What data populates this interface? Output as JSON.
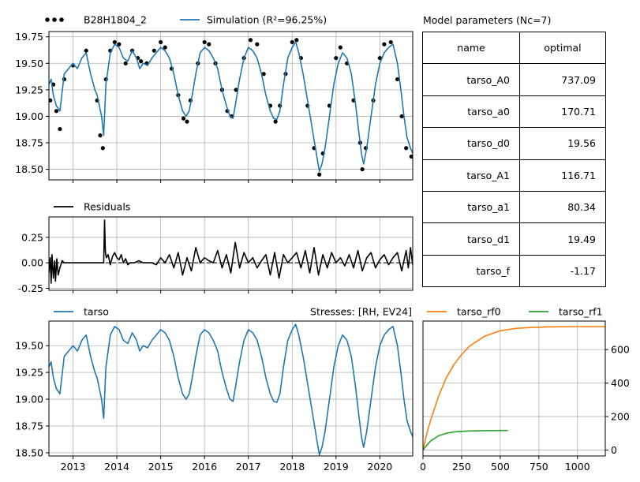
{
  "legends": {
    "observed": "B28H1804_2",
    "simulation": "Simulation (R²=96.25%)",
    "residuals": "Residuals",
    "contribution": "tarso",
    "stresses": "Stresses: [RH, EV24]",
    "rf0": "tarso_rf0",
    "rf1": "tarso_rf1"
  },
  "params_table": {
    "title": "Model parameters (Nc=7)",
    "headers": [
      "name",
      "optimal"
    ],
    "rows": [
      {
        "name": "tarso_A0",
        "optimal": "737.09"
      },
      {
        "name": "tarso_a0",
        "optimal": "170.71"
      },
      {
        "name": "tarso_d0",
        "optimal": "19.56"
      },
      {
        "name": "tarso_A1",
        "optimal": "116.71"
      },
      {
        "name": "tarso_a1",
        "optimal": "80.34"
      },
      {
        "name": "tarso_d1",
        "optimal": "19.49"
      },
      {
        "name": "tarso_f",
        "optimal": "-1.17"
      }
    ]
  },
  "colors": {
    "simulation": "#1f77b4",
    "observed": "#000000",
    "rf0": "#ff7f0e",
    "rf1": "#2ca02c"
  },
  "chart_data": [
    {
      "type": "line",
      "panel": "head",
      "xlim": [
        2012.45,
        2020.75
      ],
      "ylim": [
        18.4,
        19.8
      ],
      "yticks": [
        "18.50",
        "18.75",
        "19.00",
        "19.25",
        "19.50",
        "19.75"
      ],
      "grid": true,
      "legend_position": "top-left-outside",
      "series": [
        {
          "name": "B28H1804_2",
          "style": "markers",
          "x": [
            2012.48,
            2012.55,
            2012.62,
            2012.7,
            2012.8,
            2013.0,
            2013.3,
            2013.55,
            2013.62,
            2013.68,
            2013.75,
            2013.85,
            2013.95,
            2014.05,
            2014.2,
            2014.35,
            2014.48,
            2014.55,
            2014.68,
            2014.85,
            2015.0,
            2015.1,
            2015.25,
            2015.4,
            2015.52,
            2015.6,
            2015.68,
            2015.85,
            2016.0,
            2016.1,
            2016.25,
            2016.4,
            2016.52,
            2016.62,
            2016.72,
            2016.9,
            2017.05,
            2017.2,
            2017.35,
            2017.5,
            2017.62,
            2017.72,
            2017.85,
            2018.0,
            2018.1,
            2018.2,
            2018.35,
            2018.5,
            2018.62,
            2018.7,
            2018.85,
            2019.0,
            2019.1,
            2019.25,
            2019.4,
            2019.55,
            2019.6,
            2019.68,
            2019.85,
            2020.0,
            2020.1,
            2020.25,
            2020.4,
            2020.5,
            2020.6,
            2020.72
          ],
          "y": [
            19.15,
            19.3,
            19.05,
            18.88,
            19.35,
            19.48,
            19.62,
            19.15,
            18.82,
            18.7,
            19.35,
            19.62,
            19.7,
            19.68,
            19.5,
            19.62,
            19.55,
            19.52,
            19.5,
            19.62,
            19.7,
            19.65,
            19.45,
            19.2,
            18.98,
            18.95,
            19.15,
            19.5,
            19.7,
            19.68,
            19.5,
            19.25,
            19.05,
            19.0,
            19.25,
            19.55,
            19.72,
            19.68,
            19.4,
            19.1,
            18.95,
            19.1,
            19.4,
            19.7,
            19.72,
            19.55,
            19.1,
            18.7,
            18.45,
            18.65,
            19.1,
            19.55,
            19.65,
            19.5,
            19.15,
            18.75,
            18.5,
            18.7,
            19.15,
            19.55,
            19.68,
            19.7,
            19.35,
            19.0,
            18.7,
            18.62
          ]
        },
        {
          "name": "Simulation (R²=96.25%)",
          "style": "line",
          "x": [
            2012.45,
            2012.5,
            2012.55,
            2012.62,
            2012.7,
            2012.8,
            2012.9,
            2013.0,
            2013.1,
            2013.2,
            2013.3,
            2013.4,
            2013.5,
            2013.55,
            2013.6,
            2013.65,
            2013.7,
            2013.75,
            2013.85,
            2013.95,
            2014.05,
            2014.15,
            2014.25,
            2014.35,
            2014.45,
            2014.52,
            2014.6,
            2014.7,
            2014.8,
            2014.9,
            2015.0,
            2015.1,
            2015.2,
            2015.3,
            2015.4,
            2015.5,
            2015.58,
            2015.65,
            2015.72,
            2015.8,
            2015.9,
            2016.0,
            2016.1,
            2016.2,
            2016.3,
            2016.4,
            2016.5,
            2016.58,
            2016.65,
            2016.72,
            2016.8,
            2016.9,
            2017.0,
            2017.1,
            2017.2,
            2017.3,
            2017.4,
            2017.5,
            2017.58,
            2017.65,
            2017.72,
            2017.8,
            2017.9,
            2018.0,
            2018.08,
            2018.15,
            2018.25,
            2018.35,
            2018.45,
            2018.55,
            2018.62,
            2018.68,
            2018.75,
            2018.85,
            2018.95,
            2019.05,
            2019.15,
            2019.25,
            2019.35,
            2019.45,
            2019.52,
            2019.58,
            2019.63,
            2019.7,
            2019.8,
            2019.9,
            2020.0,
            2020.1,
            2020.2,
            2020.3,
            2020.4,
            2020.48,
            2020.55,
            2020.62,
            2020.7,
            2020.75
          ],
          "y": [
            19.3,
            19.35,
            19.2,
            19.1,
            19.05,
            19.4,
            19.45,
            19.5,
            19.45,
            19.55,
            19.6,
            19.4,
            19.25,
            19.2,
            19.1,
            19.0,
            18.82,
            19.3,
            19.6,
            19.68,
            19.65,
            19.55,
            19.52,
            19.62,
            19.55,
            19.45,
            19.5,
            19.48,
            19.55,
            19.6,
            19.65,
            19.62,
            19.55,
            19.4,
            19.2,
            19.05,
            19.0,
            19.05,
            19.2,
            19.4,
            19.6,
            19.65,
            19.62,
            19.55,
            19.45,
            19.25,
            19.1,
            19.0,
            18.98,
            19.15,
            19.35,
            19.55,
            19.65,
            19.62,
            19.55,
            19.4,
            19.2,
            19.05,
            18.98,
            18.97,
            19.05,
            19.3,
            19.55,
            19.65,
            19.7,
            19.6,
            19.4,
            19.15,
            18.9,
            18.65,
            18.48,
            18.55,
            18.7,
            19.0,
            19.3,
            19.5,
            19.6,
            19.55,
            19.4,
            19.1,
            18.85,
            18.65,
            18.55,
            18.7,
            19.0,
            19.3,
            19.5,
            19.6,
            19.65,
            19.68,
            19.5,
            19.25,
            19.0,
            18.8,
            18.7,
            18.65
          ]
        }
      ]
    },
    {
      "type": "line",
      "panel": "residuals",
      "xlim": [
        2012.45,
        2020.75
      ],
      "ylim": [
        -0.27,
        0.45
      ],
      "yticks": [
        "-0.25",
        "0.00",
        "0.25"
      ],
      "grid": true,
      "legend_position": "top-left-outside",
      "series": [
        {
          "name": "Residuals",
          "x": [
            2012.45,
            2012.48,
            2012.5,
            2012.52,
            2012.55,
            2012.58,
            2012.6,
            2012.63,
            2012.66,
            2012.7,
            2012.75,
            2012.8,
            2013.7,
            2013.72,
            2013.74,
            2013.76,
            2013.8,
            2013.85,
            2013.9,
            2013.95,
            2014.0,
            2014.05,
            2014.1,
            2014.15,
            2014.2,
            2014.25,
            2014.3,
            2014.4,
            2014.5,
            2014.6,
            2014.7,
            2014.8,
            2014.9,
            2015.0,
            2015.1,
            2015.2,
            2015.3,
            2015.4,
            2015.5,
            2015.6,
            2015.7,
            2015.8,
            2015.9,
            2016.0,
            2016.1,
            2016.2,
            2016.3,
            2016.4,
            2016.5,
            2016.6,
            2016.7,
            2016.8,
            2016.9,
            2017.0,
            2017.1,
            2017.2,
            2017.3,
            2017.4,
            2017.5,
            2017.6,
            2017.7,
            2017.8,
            2017.9,
            2018.0,
            2018.1,
            2018.2,
            2018.3,
            2018.4,
            2018.5,
            2018.6,
            2018.7,
            2018.8,
            2018.9,
            2019.0,
            2019.1,
            2019.2,
            2019.3,
            2019.4,
            2019.5,
            2019.6,
            2019.7,
            2019.8,
            2019.9,
            2020.0,
            2020.1,
            2020.2,
            2020.3,
            2020.4,
            2020.5,
            2020.6,
            2020.65,
            2020.7,
            2020.75
          ],
          "y": [
            -0.1,
            0.05,
            -0.2,
            0.08,
            -0.15,
            0.02,
            -0.18,
            0.04,
            -0.12,
            -0.05,
            0.02,
            0.0,
            0.0,
            0.42,
            0.1,
            0.05,
            0.08,
            -0.02,
            0.06,
            0.1,
            0.05,
            0.03,
            0.08,
            0.0,
            0.04,
            -0.02,
            0.0,
            0.0,
            0.02,
            0.0,
            0.0,
            0.0,
            -0.02,
            0.05,
            0.0,
            0.08,
            -0.05,
            0.1,
            -0.12,
            0.05,
            -0.08,
            0.15,
            0.0,
            0.05,
            0.02,
            0.0,
            0.12,
            -0.05,
            0.08,
            -0.1,
            0.2,
            -0.05,
            0.1,
            0.0,
            0.05,
            -0.05,
            0.02,
            0.08,
            -0.12,
            0.1,
            -0.15,
            0.08,
            0.0,
            0.05,
            0.1,
            -0.05,
            0.12,
            -0.1,
            0.15,
            -0.12,
            0.08,
            -0.05,
            0.1,
            0.0,
            0.05,
            -0.03,
            0.08,
            -0.05,
            0.12,
            -0.08,
            0.05,
            0.1,
            -0.05,
            0.03,
            0.08,
            -0.02,
            0.05,
            0.1,
            -0.08,
            0.12,
            -0.05,
            0.15,
            -0.02
          ]
        }
      ]
    },
    {
      "type": "line",
      "panel": "contribution",
      "xlim": [
        2012.45,
        2020.75
      ],
      "ylim": [
        18.47,
        19.73
      ],
      "yticks": [
        "18.50",
        "18.75",
        "19.00",
        "19.25",
        "19.50"
      ],
      "xticks": [
        "2013",
        "2014",
        "2015",
        "2016",
        "2017",
        "2018",
        "2019",
        "2020"
      ],
      "grid": true,
      "legend_position": "top-left-outside",
      "series": [
        {
          "name": "tarso",
          "x": [
            2012.45,
            2012.5,
            2012.55,
            2012.62,
            2012.7,
            2012.8,
            2012.9,
            2013.0,
            2013.1,
            2013.2,
            2013.3,
            2013.4,
            2013.5,
            2013.55,
            2013.6,
            2013.65,
            2013.7,
            2013.75,
            2013.85,
            2013.95,
            2014.05,
            2014.15,
            2014.25,
            2014.35,
            2014.45,
            2014.52,
            2014.6,
            2014.7,
            2014.8,
            2014.9,
            2015.0,
            2015.1,
            2015.2,
            2015.3,
            2015.4,
            2015.5,
            2015.58,
            2015.65,
            2015.72,
            2015.8,
            2015.9,
            2016.0,
            2016.1,
            2016.2,
            2016.3,
            2016.4,
            2016.5,
            2016.58,
            2016.65,
            2016.72,
            2016.8,
            2016.9,
            2017.0,
            2017.1,
            2017.2,
            2017.3,
            2017.4,
            2017.5,
            2017.58,
            2017.65,
            2017.72,
            2017.8,
            2017.9,
            2018.0,
            2018.08,
            2018.15,
            2018.25,
            2018.35,
            2018.45,
            2018.55,
            2018.62,
            2018.68,
            2018.75,
            2018.85,
            2018.95,
            2019.05,
            2019.15,
            2019.25,
            2019.35,
            2019.45,
            2019.52,
            2019.58,
            2019.63,
            2019.7,
            2019.8,
            2019.9,
            2020.0,
            2020.1,
            2020.2,
            2020.3,
            2020.4,
            2020.48,
            2020.55,
            2020.62,
            2020.7,
            2020.75
          ],
          "y": [
            19.3,
            19.35,
            19.2,
            19.1,
            19.05,
            19.4,
            19.45,
            19.5,
            19.45,
            19.55,
            19.6,
            19.4,
            19.25,
            19.2,
            19.1,
            19.0,
            18.82,
            19.3,
            19.6,
            19.68,
            19.65,
            19.55,
            19.52,
            19.62,
            19.55,
            19.45,
            19.5,
            19.48,
            19.55,
            19.6,
            19.65,
            19.62,
            19.55,
            19.4,
            19.2,
            19.05,
            19.0,
            19.05,
            19.2,
            19.4,
            19.6,
            19.65,
            19.62,
            19.55,
            19.45,
            19.25,
            19.1,
            19.0,
            18.98,
            19.15,
            19.35,
            19.55,
            19.65,
            19.62,
            19.55,
            19.4,
            19.2,
            19.05,
            18.98,
            18.97,
            19.05,
            19.3,
            19.55,
            19.65,
            19.7,
            19.6,
            19.4,
            19.15,
            18.9,
            18.65,
            18.48,
            18.55,
            18.7,
            19.0,
            19.3,
            19.5,
            19.6,
            19.55,
            19.4,
            19.1,
            18.85,
            18.65,
            18.55,
            18.7,
            19.0,
            19.3,
            19.5,
            19.6,
            19.65,
            19.68,
            19.5,
            19.25,
            19.0,
            18.8,
            18.7,
            18.65
          ]
        }
      ]
    },
    {
      "type": "line",
      "panel": "response",
      "xlim": [
        0,
        1180
      ],
      "ylim": [
        -35,
        770
      ],
      "xticks": [
        "0",
        "250",
        "500",
        "750",
        "1000"
      ],
      "yticks": [
        "0",
        "200",
        "400",
        "600"
      ],
      "grid": true,
      "legend_position": "top-outside",
      "series": [
        {
          "name": "tarso_rf0",
          "x": [
            0,
            25,
            50,
            100,
            150,
            200,
            250,
            300,
            400,
            500,
            600,
            700,
            800,
            900,
            1000,
            1100,
            1180
          ],
          "y": [
            0,
            100,
            180,
            320,
            430,
            510,
            570,
            620,
            680,
            712,
            726,
            732,
            735,
            736,
            737,
            737,
            737
          ]
        },
        {
          "name": "tarso_rf1",
          "x": [
            0,
            25,
            50,
            100,
            150,
            200,
            250,
            300,
            400,
            500,
            550
          ],
          "y": [
            0,
            30,
            55,
            85,
            100,
            108,
            112,
            114,
            116,
            117,
            117
          ]
        }
      ]
    }
  ]
}
